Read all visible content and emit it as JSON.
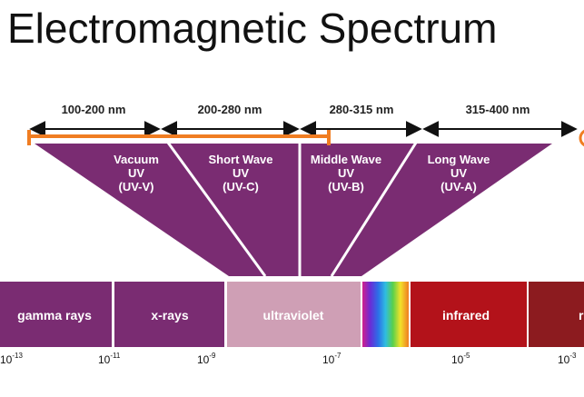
{
  "title": "Electromagnetic Spectrum",
  "colors": {
    "purple": "#7a2c72",
    "uv_band": "#cf9fb5",
    "infrared": "#b3121a",
    "far_band": "#8c1b1f",
    "orange": "#f07d22",
    "arrow": "#111111"
  },
  "uv_ranges": [
    {
      "label": "100-200 nm"
    },
    {
      "label": "200-280 nm"
    },
    {
      "label": "280-315 nm"
    },
    {
      "label": "315-400 nm"
    }
  ],
  "uv_subbands": [
    {
      "lines": [
        "Vacuum",
        "UV",
        "(UV-V)"
      ]
    },
    {
      "lines": [
        "Short Wave",
        "UV",
        "(UV-C)"
      ]
    },
    {
      "lines": [
        "Middle Wave",
        "UV",
        "(UV-B)"
      ]
    },
    {
      "lines": [
        "Long Wave",
        "UV",
        "(UV-A)"
      ]
    }
  ],
  "spectrum_bands": [
    {
      "label": "gamma rays",
      "color": "#7a2c72"
    },
    {
      "label": "x-rays",
      "color": "#7a2c72"
    },
    {
      "label": "ultraviolet",
      "color": "#cf9fb5"
    },
    {
      "label": "",
      "color": "rainbow"
    },
    {
      "label": "infrared",
      "color": "#b3121a"
    },
    {
      "label": "r",
      "color": "#8c1b1f"
    }
  ],
  "wavelength_ticks": [
    {
      "base": "10",
      "exp": "-13"
    },
    {
      "base": "10",
      "exp": "-11"
    },
    {
      "base": "10",
      "exp": "-9"
    },
    {
      "base": "10",
      "exp": "-7"
    },
    {
      "base": "10",
      "exp": "-5"
    },
    {
      "base": "10",
      "exp": "-3"
    }
  ]
}
